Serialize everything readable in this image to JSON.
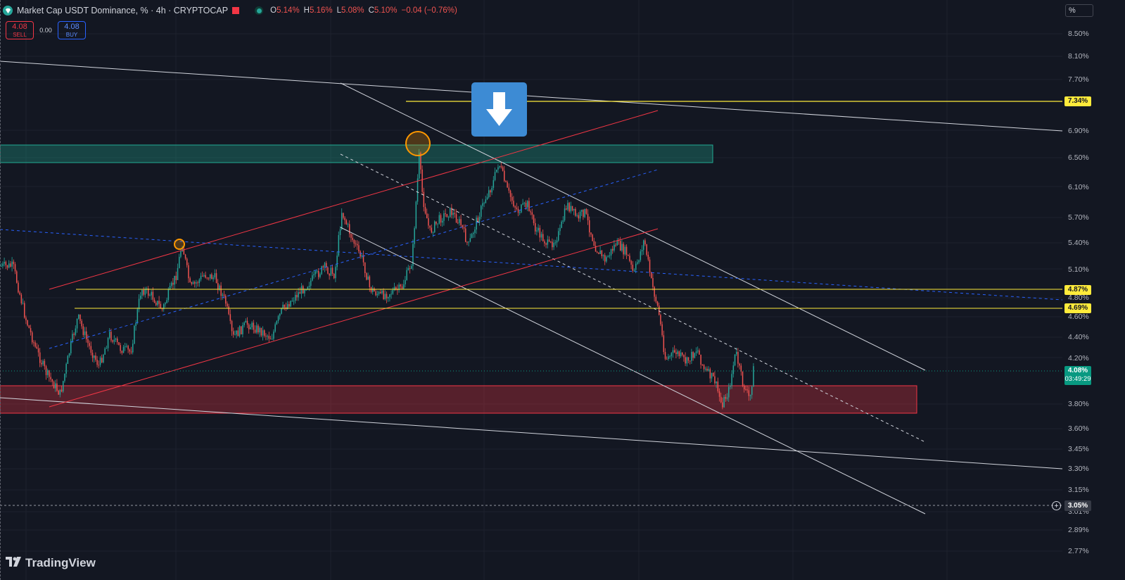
{
  "header": {
    "title": "Market Cap USDT Dominance, % · 4h · CRYPTOCAP",
    "ohlc": [
      {
        "label": "O",
        "value": "5.14%"
      },
      {
        "label": "H",
        "value": "5.16%"
      },
      {
        "label": "L",
        "value": "5.08%"
      },
      {
        "label": "C",
        "value": "5.10%"
      },
      {
        "label": "",
        "value": "−0.04 (−0.76%)"
      }
    ]
  },
  "trade": {
    "sell_price": "4.08",
    "sell_label": "SELL",
    "spread": "0.00",
    "buy_price": "4.08",
    "buy_label": "BUY"
  },
  "axis": {
    "scale_label": "%",
    "ticks": [
      "8.50%",
      "8.10%",
      "7.70%",
      "6.90%",
      "6.50%",
      "6.10%",
      "5.70%",
      "5.40%",
      "5.10%",
      "4.80%",
      "4.60%",
      "4.40%",
      "4.20%",
      "3.80%",
      "3.60%",
      "3.45%",
      "3.30%",
      "3.15%",
      "3.01%",
      "2.89%",
      "2.77%"
    ]
  },
  "price_labels": {
    "level_1": "7.34%",
    "level_2": "4.87%",
    "level_3": "4.69%",
    "current_price": "4.08%",
    "countdown": "03:49:29",
    "alert": "3.05%"
  },
  "brand": {
    "name": "TradingView"
  },
  "colors": {
    "up": "#26a69a",
    "down": "#ef5350",
    "background": "#131722",
    "support_zone": "#f23645",
    "resistance_zone": "#22ab94",
    "horizontal_levels": "#ffeb3b",
    "channel_red": "#f23645",
    "channel_white": "#d1d4dc",
    "blue_dashed": "#2962ff",
    "highlight": "#ff9800"
  },
  "icons": [
    "diamond-logo-icon",
    "live-dot-icon",
    "down-arrow-icon",
    "plus-circle-icon",
    "tradingview-logo-icon"
  ]
}
